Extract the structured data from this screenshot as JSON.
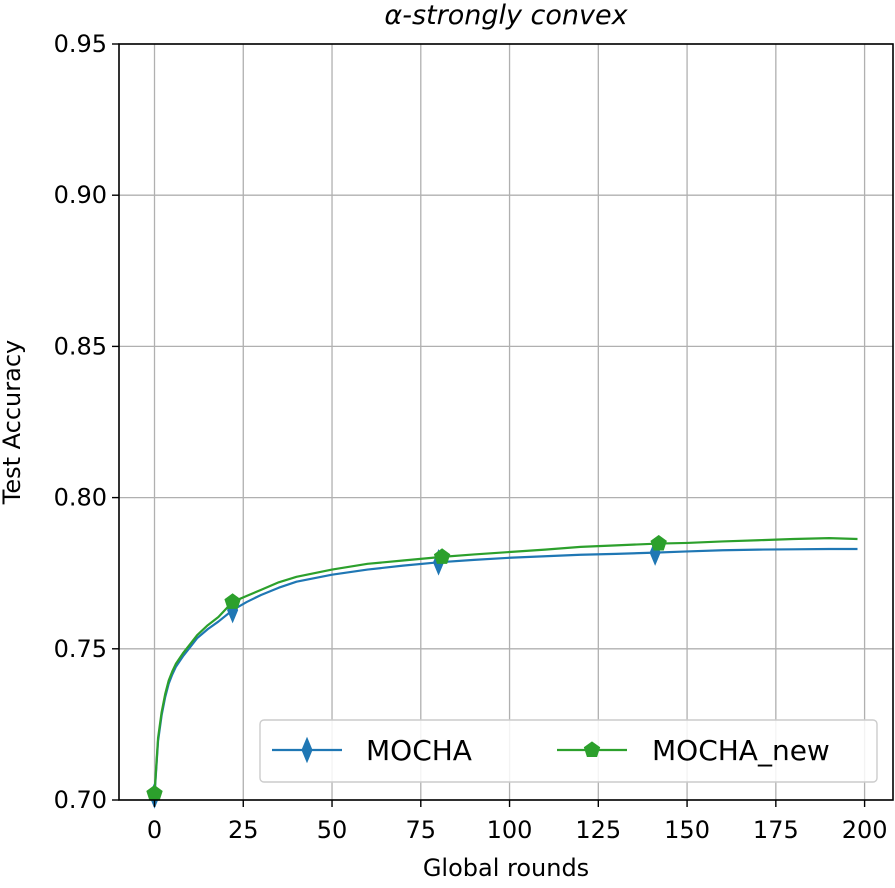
{
  "chart_data": {
    "type": "line",
    "title": "α-strongly convex",
    "xlabel": "Global rounds",
    "ylabel": "Test Accuracy",
    "xlim": [
      -10,
      208
    ],
    "ylim": [
      0.7,
      0.95
    ],
    "xticks": [
      0,
      25,
      50,
      75,
      100,
      125,
      150,
      175,
      200
    ],
    "yticks": [
      0.7,
      0.75,
      0.8,
      0.85,
      0.9,
      0.95
    ],
    "xtick_labels": [
      "0",
      "25",
      "50",
      "75",
      "100",
      "125",
      "150",
      "175",
      "200"
    ],
    "ytick_labels": [
      "0.70",
      "0.75",
      "0.80",
      "0.85",
      "0.90",
      "0.95"
    ],
    "grid": true,
    "legend": "lower-right, two columns",
    "series": [
      {
        "name": "MOCHA",
        "color": "#1f77b4",
        "marker": "thin_diamond",
        "marker_x": [
          0,
          22,
          80,
          141
        ],
        "x": [
          0,
          1,
          2,
          3,
          4,
          5,
          6,
          8,
          10,
          12,
          15,
          18,
          22,
          26,
          30,
          35,
          40,
          50,
          60,
          70,
          80,
          90,
          100,
          110,
          120,
          130,
          141,
          150,
          160,
          170,
          180,
          190,
          198
        ],
        "y": [
          0.7015,
          0.7195,
          0.728,
          0.734,
          0.7385,
          0.7415,
          0.744,
          0.7475,
          0.7505,
          0.7535,
          0.7565,
          0.759,
          0.7628,
          0.7655,
          0.7678,
          0.7702,
          0.7722,
          0.7745,
          0.7762,
          0.7775,
          0.7786,
          0.7794,
          0.7801,
          0.7806,
          0.7811,
          0.7814,
          0.7818,
          0.7822,
          0.7826,
          0.7828,
          0.7829,
          0.783,
          0.783
        ]
      },
      {
        "name": "MOCHA_new",
        "color": "#2ca02c",
        "marker": "pentagon",
        "marker_x": [
          0,
          22,
          81,
          142
        ],
        "x": [
          0,
          1,
          2,
          3,
          4,
          5,
          6,
          8,
          10,
          12,
          15,
          18,
          22,
          26,
          30,
          35,
          40,
          50,
          60,
          70,
          81,
          90,
          100,
          110,
          120,
          130,
          142,
          150,
          160,
          170,
          180,
          190,
          198
        ],
        "y": [
          0.7021,
          0.7205,
          0.729,
          0.735,
          0.7395,
          0.7425,
          0.745,
          0.7485,
          0.7515,
          0.7545,
          0.7578,
          0.7605,
          0.7655,
          0.7675,
          0.7695,
          0.772,
          0.7738,
          0.7762,
          0.7781,
          0.7792,
          0.7804,
          0.7812,
          0.782,
          0.7828,
          0.7837,
          0.7842,
          0.7848,
          0.785,
          0.7855,
          0.7859,
          0.7863,
          0.7866,
          0.7863
        ]
      }
    ]
  }
}
